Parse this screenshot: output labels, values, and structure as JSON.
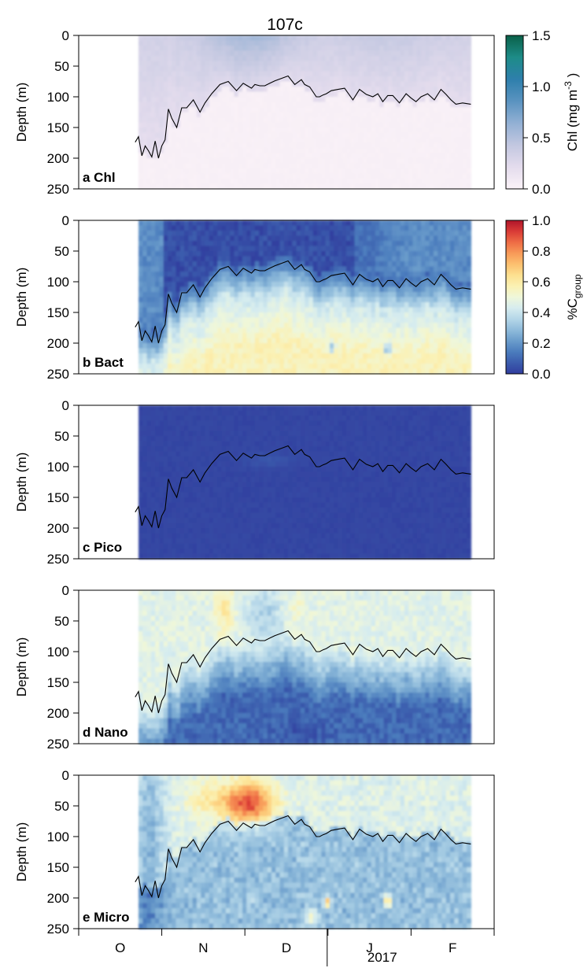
{
  "figure_title": "107c",
  "chart_data": [
    {
      "type": "heatmap",
      "panel_label": "a Chl",
      "ylabel": "Depth (m)",
      "ylim": [
        250,
        0
      ],
      "yticks": [
        "0",
        "50",
        "100",
        "150",
        "200",
        "250"
      ],
      "field": "chl",
      "colorbar": {
        "label": "Chl (mg m",
        "label_sup": "-3",
        "label_close": ")",
        "range": [
          0.0,
          1.5
        ],
        "ticks": [
          "0.0",
          "0.5",
          "1.0",
          "1.5"
        ],
        "colors": [
          "#fbf3f8",
          "#e4dced",
          "#c2c7e0",
          "#92b0d4",
          "#5a93c0",
          "#2e7fac",
          "#1d8c88",
          "#0a6048"
        ]
      },
      "data_extent_months": [
        0.72,
        4.72
      ]
    },
    {
      "type": "heatmap",
      "panel_label": "b Bact",
      "ylabel": "Depth (m)",
      "ylim": [
        250,
        0
      ],
      "yticks": [
        "0",
        "50",
        "100",
        "150",
        "200",
        "250"
      ],
      "field": "bact",
      "colorbar": {
        "label": "%C",
        "label_sub": "group",
        "range": [
          0.0,
          1.0
        ],
        "ticks": [
          "0.0",
          "0.2",
          "0.4",
          "0.6",
          "0.8",
          "1.0"
        ],
        "colors": [
          "#313d9e",
          "#3b5cad",
          "#4b7cbd",
          "#6a9ccb",
          "#8fbbdb",
          "#b4d6e8",
          "#d6ecef",
          "#eff7da",
          "#fbf1b3",
          "#fde090",
          "#fcc06f",
          "#f89a58",
          "#ee6c45",
          "#d93b36",
          "#b0152a"
        ]
      },
      "data_extent_months": [
        0.72,
        4.72
      ]
    },
    {
      "type": "heatmap",
      "panel_label": "c Pico",
      "ylabel": "Depth (m)",
      "ylim": [
        250,
        0
      ],
      "yticks": [
        "0",
        "50",
        "100",
        "150",
        "200",
        "250"
      ],
      "field": "pico",
      "data_extent_months": [
        0.72,
        4.72
      ]
    },
    {
      "type": "heatmap",
      "panel_label": "d Nano",
      "ylabel": "Depth (m)",
      "ylim": [
        250,
        0
      ],
      "yticks": [
        "0",
        "50",
        "100",
        "150",
        "200",
        "250"
      ],
      "field": "nano",
      "data_extent_months": [
        0.72,
        4.72
      ]
    },
    {
      "type": "heatmap",
      "panel_label": "e Micro",
      "ylabel": "Depth (m)",
      "ylim": [
        250,
        0
      ],
      "yticks": [
        "0",
        "50",
        "100",
        "150",
        "200",
        "250"
      ],
      "field": "micro",
      "data_extent_months": [
        0.72,
        4.72
      ]
    }
  ],
  "mixed_layer_line": {
    "x_months": [
      0.68,
      0.72,
      0.76,
      0.8,
      0.84,
      0.88,
      0.92,
      0.96,
      1.0,
      1.04,
      1.08,
      1.12,
      1.18,
      1.24,
      1.3,
      1.38,
      1.46,
      1.52,
      1.6,
      1.7,
      1.8,
      1.9,
      1.98,
      2.03,
      2.08,
      2.12,
      2.18,
      2.24,
      2.3,
      2.36,
      2.44,
      2.52,
      2.6,
      2.68,
      2.72,
      2.78,
      2.86,
      2.9,
      2.94,
      2.98,
      3.04,
      3.12,
      3.2,
      3.3,
      3.38,
      3.46,
      3.54,
      3.6,
      3.66,
      3.72,
      3.78,
      3.86,
      3.94,
      4.0,
      4.06,
      4.12,
      4.2,
      4.28,
      4.36,
      4.42,
      4.48,
      4.54,
      4.62,
      4.72
    ],
    "depth_m": [
      174,
      165,
      196,
      180,
      188,
      198,
      172,
      200,
      180,
      170,
      120,
      135,
      150,
      118,
      118,
      105,
      125,
      110,
      95,
      80,
      75,
      90,
      78,
      82,
      86,
      80,
      82,
      82,
      78,
      74,
      70,
      66,
      80,
      72,
      80,
      84,
      100,
      100,
      97,
      95,
      90,
      88,
      86,
      105,
      88,
      96,
      100,
      95,
      108,
      98,
      98,
      110,
      95,
      102,
      108,
      100,
      95,
      105,
      88,
      96,
      105,
      112,
      110,
      112
    ]
  },
  "x_axis": {
    "months": [
      "O",
      "N",
      "D",
      "J",
      "F"
    ],
    "year_label": "2017"
  }
}
